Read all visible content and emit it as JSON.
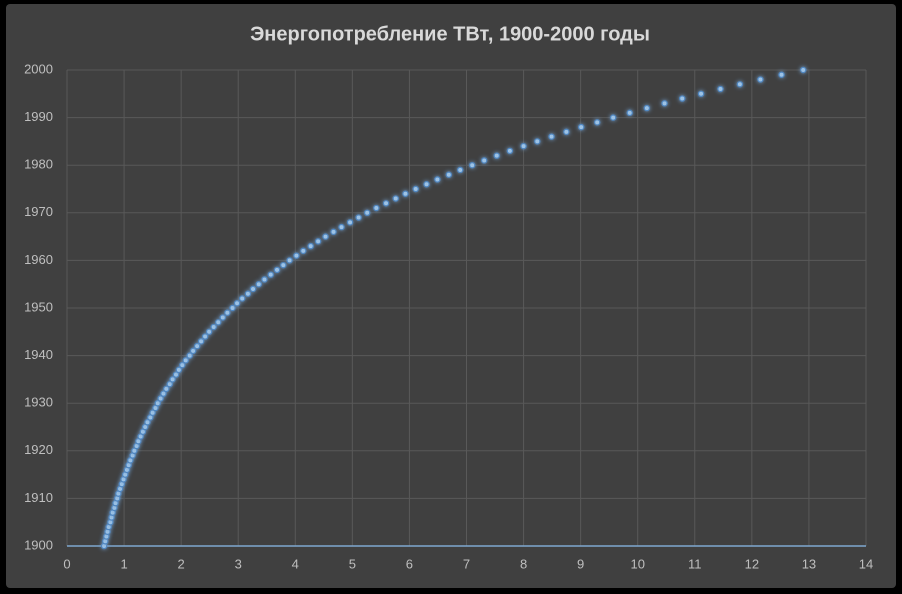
{
  "chart_data": {
    "type": "scatter",
    "title": "Энергопотребление ТВт, 1900-2000 годы",
    "x": [
      0.65,
      0.67,
      0.69,
      0.71,
      0.73,
      0.76,
      0.78,
      0.8,
      0.83,
      0.85,
      0.88,
      0.9,
      0.93,
      0.96,
      0.99,
      1.02,
      1.05,
      1.08,
      1.11,
      1.15,
      1.18,
      1.22,
      1.25,
      1.29,
      1.33,
      1.37,
      1.41,
      1.46,
      1.5,
      1.55,
      1.59,
      1.64,
      1.69,
      1.74,
      1.8,
      1.85,
      1.91,
      1.96,
      2.02,
      2.08,
      2.15,
      2.21,
      2.28,
      2.35,
      2.42,
      2.49,
      2.57,
      2.65,
      2.73,
      2.81,
      2.9,
      2.98,
      3.07,
      3.17,
      3.26,
      3.36,
      3.46,
      3.57,
      3.68,
      3.79,
      3.9,
      4.02,
      4.14,
      4.27,
      4.4,
      4.53,
      4.67,
      4.81,
      4.96,
      5.11,
      5.26,
      5.42,
      5.59,
      5.76,
      5.93,
      6.11,
      6.3,
      6.49,
      6.69,
      6.89,
      7.1,
      7.31,
      7.53,
      7.76,
      8.0,
      8.24,
      8.49,
      8.75,
      9.01,
      9.29,
      9.57,
      9.86,
      10.16,
      10.47,
      10.78,
      11.11,
      11.45,
      11.79,
      12.15,
      12.52,
      12.9
    ],
    "values": [
      1900,
      1901,
      1902,
      1903,
      1904,
      1905,
      1906,
      1907,
      1908,
      1909,
      1910,
      1911,
      1912,
      1913,
      1914,
      1915,
      1916,
      1917,
      1918,
      1919,
      1920,
      1921,
      1922,
      1923,
      1924,
      1925,
      1926,
      1927,
      1928,
      1929,
      1930,
      1931,
      1932,
      1933,
      1934,
      1935,
      1936,
      1937,
      1938,
      1939,
      1940,
      1941,
      1942,
      1943,
      1944,
      1945,
      1946,
      1947,
      1948,
      1949,
      1950,
      1951,
      1952,
      1953,
      1954,
      1955,
      1956,
      1957,
      1958,
      1959,
      1960,
      1961,
      1962,
      1963,
      1964,
      1965,
      1966,
      1967,
      1968,
      1969,
      1970,
      1971,
      1972,
      1973,
      1974,
      1975,
      1976,
      1977,
      1978,
      1979,
      1980,
      1981,
      1982,
      1983,
      1984,
      1985,
      1986,
      1987,
      1988,
      1989,
      1990,
      1991,
      1992,
      1993,
      1994,
      1995,
      1996,
      1997,
      1998,
      1999,
      2000
    ],
    "color": "#9dc3e6",
    "xlim": [
      0,
      14
    ],
    "xticks": [
      0,
      1,
      2,
      3,
      4,
      5,
      6,
      7,
      8,
      9,
      10,
      11,
      12,
      13,
      14
    ],
    "ylim": [
      1900,
      2000
    ],
    "yticks": [
      1900,
      1910,
      1920,
      1930,
      1940,
      1950,
      1960,
      1970,
      1980,
      1990,
      2000
    ],
    "grid": true
  }
}
